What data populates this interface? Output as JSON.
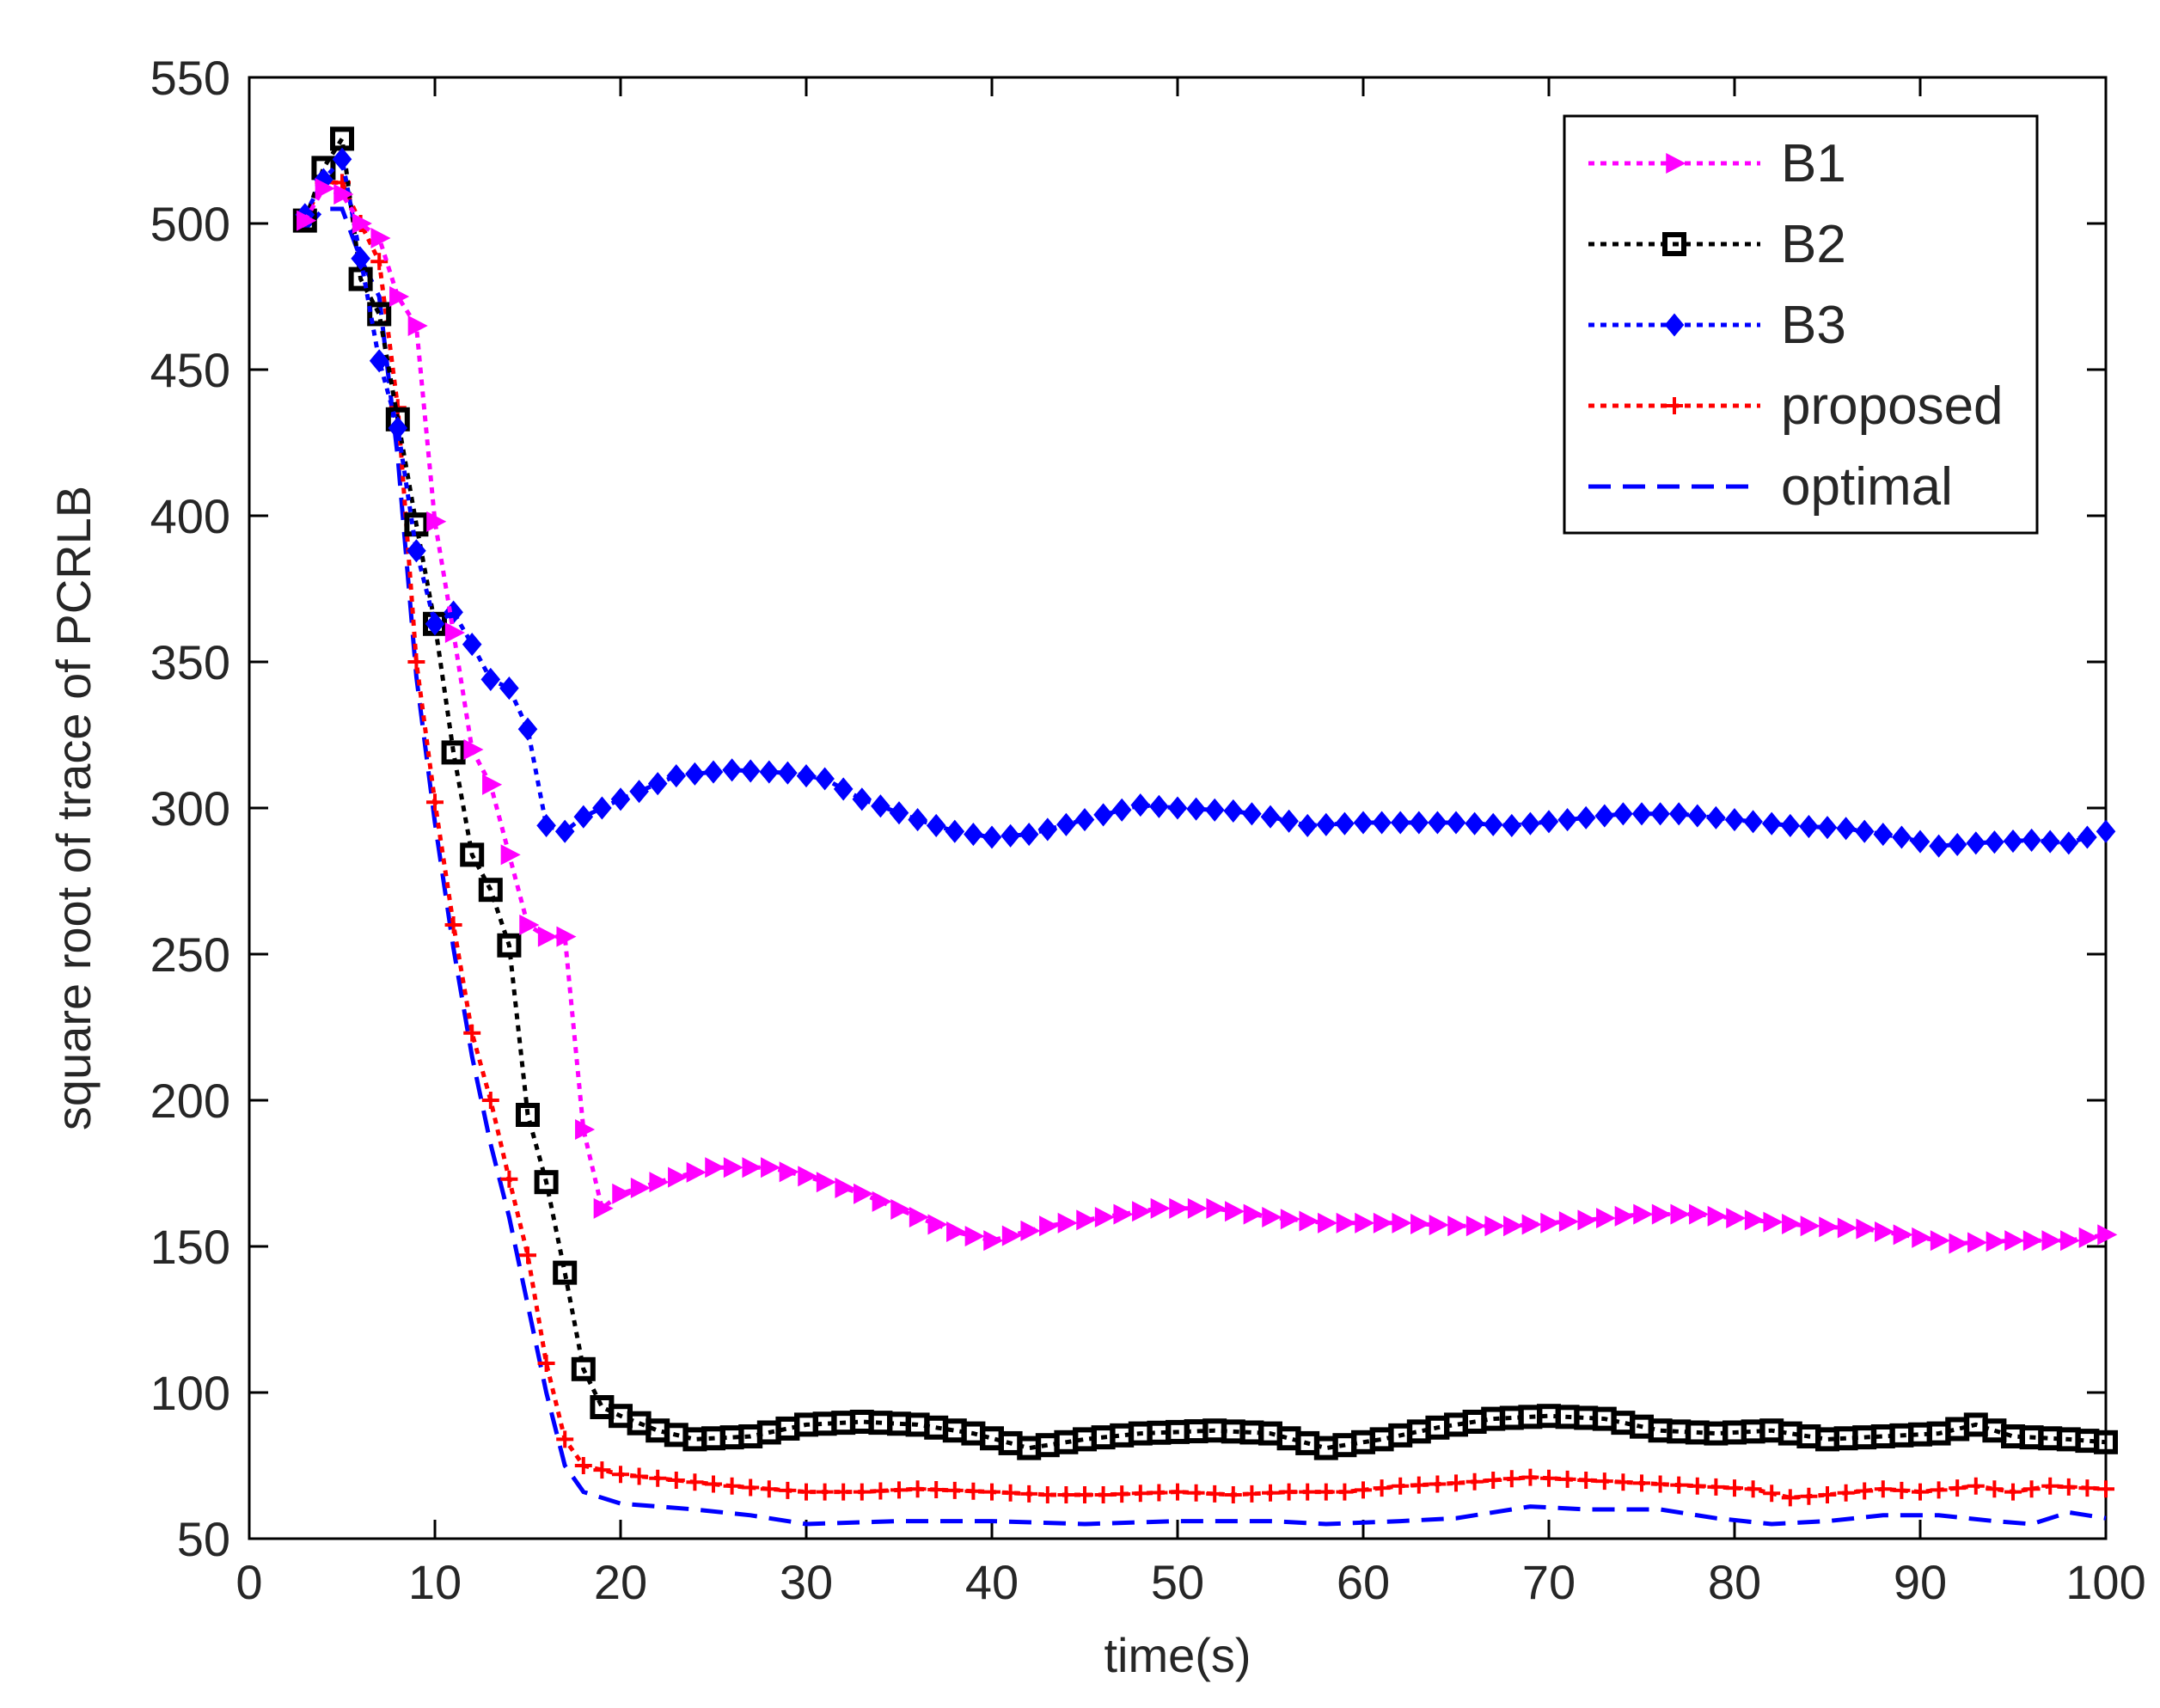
{
  "chart_data": {
    "type": "line",
    "title": "",
    "xlabel": "time(s)",
    "ylabel": "square root of trace of PCRLB",
    "xlim": [
      0,
      100
    ],
    "ylim": [
      50,
      550
    ],
    "xticks": [
      0,
      10,
      20,
      30,
      40,
      50,
      60,
      70,
      80,
      90,
      100
    ],
    "yticks": [
      50,
      100,
      150,
      200,
      250,
      300,
      350,
      400,
      450,
      500,
      550
    ],
    "xtick_labels": [
      "0",
      "10",
      "20",
      "30",
      "40",
      "50",
      "60",
      "70",
      "80",
      "90",
      "100"
    ],
    "ytick_labels": [
      "50",
      "100",
      "150",
      "200",
      "250",
      "300",
      "350",
      "400",
      "450",
      "500",
      "550"
    ],
    "legend_position": "top-right",
    "series": [
      {
        "name": "B1",
        "color": "#ff00ff",
        "linestyle": "dotted",
        "marker": "triangle-right",
        "points": [
          [
            3,
            501
          ],
          [
            4,
            512
          ],
          [
            5,
            510
          ],
          [
            6,
            500
          ],
          [
            7,
            495
          ],
          [
            8,
            475
          ],
          [
            9,
            465
          ],
          [
            10,
            398
          ],
          [
            11,
            360
          ],
          [
            12,
            320
          ],
          [
            13,
            308
          ],
          [
            14,
            284
          ],
          [
            15,
            260
          ],
          [
            16,
            256
          ],
          [
            17,
            256
          ],
          [
            18,
            190
          ],
          [
            19,
            163
          ],
          [
            20,
            168
          ],
          [
            22,
            172
          ],
          [
            25,
            177
          ],
          [
            28,
            177
          ],
          [
            30,
            174
          ],
          [
            33,
            168
          ],
          [
            36,
            160
          ],
          [
            38,
            155
          ],
          [
            40,
            152
          ],
          [
            43,
            157
          ],
          [
            46,
            160
          ],
          [
            49,
            163
          ],
          [
            52,
            163
          ],
          [
            55,
            160
          ],
          [
            58,
            158
          ],
          [
            62,
            158
          ],
          [
            65,
            157
          ],
          [
            68,
            157
          ],
          [
            72,
            159
          ],
          [
            75,
            161
          ],
          [
            78,
            161
          ],
          [
            81,
            159
          ],
          [
            84,
            157
          ],
          [
            87,
            156
          ],
          [
            90,
            153
          ],
          [
            92,
            151
          ],
          [
            95,
            152
          ],
          [
            98,
            152
          ],
          [
            100,
            154
          ]
        ]
      },
      {
        "name": "B2",
        "color": "#000000",
        "linestyle": "dotted",
        "marker": "square",
        "points": [
          [
            3,
            501
          ],
          [
            4,
            519
          ],
          [
            5,
            529
          ],
          [
            6,
            481
          ],
          [
            7,
            469
          ],
          [
            8,
            433
          ],
          [
            9,
            397
          ],
          [
            10,
            363
          ],
          [
            11,
            319
          ],
          [
            12,
            284
          ],
          [
            13,
            272
          ],
          [
            14,
            253
          ],
          [
            15,
            195
          ],
          [
            16,
            172
          ],
          [
            17,
            141
          ],
          [
            18,
            108
          ],
          [
            19,
            95
          ],
          [
            20,
            92
          ],
          [
            22,
            87
          ],
          [
            24,
            84
          ],
          [
            27,
            85
          ],
          [
            30,
            89
          ],
          [
            33,
            90
          ],
          [
            36,
            89
          ],
          [
            39,
            86
          ],
          [
            42,
            81
          ],
          [
            45,
            84
          ],
          [
            48,
            86
          ],
          [
            52,
            87
          ],
          [
            55,
            86
          ],
          [
            58,
            81
          ],
          [
            61,
            84
          ],
          [
            64,
            88
          ],
          [
            67,
            91
          ],
          [
            70,
            92
          ],
          [
            73,
            91
          ],
          [
            76,
            87
          ],
          [
            79,
            86
          ],
          [
            82,
            87
          ],
          [
            85,
            84
          ],
          [
            88,
            85
          ],
          [
            91,
            86
          ],
          [
            93,
            89
          ],
          [
            95,
            85
          ],
          [
            98,
            84
          ],
          [
            100,
            83
          ]
        ]
      },
      {
        "name": "B3",
        "color": "#0000ff",
        "linestyle": "dotted",
        "marker": "diamond",
        "points": [
          [
            3,
            503
          ],
          [
            4,
            515
          ],
          [
            5,
            522
          ],
          [
            6,
            488
          ],
          [
            7,
            453
          ],
          [
            8,
            430
          ],
          [
            9,
            388
          ],
          [
            10,
            363
          ],
          [
            11,
            367
          ],
          [
            12,
            356
          ],
          [
            13,
            344
          ],
          [
            14,
            341
          ],
          [
            15,
            327
          ],
          [
            16,
            294
          ],
          [
            17,
            292
          ],
          [
            18,
            297
          ],
          [
            20,
            303
          ],
          [
            23,
            311
          ],
          [
            26,
            313
          ],
          [
            29,
            312
          ],
          [
            31,
            310
          ],
          [
            33,
            303
          ],
          [
            36,
            296
          ],
          [
            38,
            292
          ],
          [
            40,
            290
          ],
          [
            42,
            291
          ],
          [
            45,
            296
          ],
          [
            48,
            301
          ],
          [
            50,
            300
          ],
          [
            53,
            299
          ],
          [
            55,
            297
          ],
          [
            57,
            294
          ],
          [
            60,
            295
          ],
          [
            65,
            295
          ],
          [
            68,
            294
          ],
          [
            71,
            296
          ],
          [
            74,
            298
          ],
          [
            77,
            298
          ],
          [
            80,
            296
          ],
          [
            83,
            294
          ],
          [
            86,
            293
          ],
          [
            89,
            290
          ],
          [
            91,
            287
          ],
          [
            93,
            288
          ],
          [
            96,
            289
          ],
          [
            98,
            288
          ],
          [
            100,
            292
          ]
        ]
      },
      {
        "name": "proposed",
        "color": "#ff0000",
        "linestyle": "dotted",
        "marker": "plus",
        "points": [
          [
            3,
            502
          ],
          [
            4,
            514
          ],
          [
            5,
            514
          ],
          [
            6,
            500
          ],
          [
            7,
            487
          ],
          [
            8,
            437
          ],
          [
            9,
            350
          ],
          [
            10,
            302
          ],
          [
            11,
            260
          ],
          [
            12,
            223
          ],
          [
            13,
            200
          ],
          [
            14,
            173
          ],
          [
            15,
            147
          ],
          [
            16,
            110
          ],
          [
            17,
            84
          ],
          [
            18,
            75
          ],
          [
            20,
            72
          ],
          [
            23,
            70
          ],
          [
            26,
            68
          ],
          [
            30,
            66
          ],
          [
            33,
            66
          ],
          [
            36,
            67
          ],
          [
            40,
            66
          ],
          [
            43,
            65
          ],
          [
            46,
            65
          ],
          [
            50,
            66
          ],
          [
            53,
            65
          ],
          [
            56,
            66
          ],
          [
            59,
            66
          ],
          [
            62,
            68
          ],
          [
            65,
            69
          ],
          [
            69,
            71
          ],
          [
            72,
            70
          ],
          [
            75,
            69
          ],
          [
            78,
            68
          ],
          [
            81,
            67
          ],
          [
            83,
            64
          ],
          [
            85,
            65
          ],
          [
            88,
            67
          ],
          [
            90,
            66
          ],
          [
            93,
            68
          ],
          [
            95,
            66
          ],
          [
            97,
            68
          ],
          [
            100,
            67
          ]
        ]
      },
      {
        "name": "optimal",
        "color": "#0000ff",
        "linestyle": "dashed",
        "marker": "none",
        "points": [
          [
            3,
            498
          ],
          [
            4,
            505
          ],
          [
            5,
            505
          ],
          [
            6,
            488
          ],
          [
            7,
            475
          ],
          [
            8,
            420
          ],
          [
            9,
            345
          ],
          [
            10,
            295
          ],
          [
            11,
            252
          ],
          [
            12,
            215
          ],
          [
            13,
            185
          ],
          [
            14,
            160
          ],
          [
            15,
            130
          ],
          [
            16,
            100
          ],
          [
            17,
            75
          ],
          [
            18,
            66
          ],
          [
            20,
            62
          ],
          [
            24,
            60
          ],
          [
            27,
            58
          ],
          [
            30,
            55
          ],
          [
            35,
            56
          ],
          [
            40,
            56
          ],
          [
            45,
            55
          ],
          [
            50,
            56
          ],
          [
            55,
            56
          ],
          [
            58,
            55
          ],
          [
            62,
            56
          ],
          [
            65,
            57
          ],
          [
            69,
            61
          ],
          [
            72,
            60
          ],
          [
            76,
            60
          ],
          [
            79,
            57
          ],
          [
            82,
            55
          ],
          [
            85,
            56
          ],
          [
            88,
            58
          ],
          [
            91,
            58
          ],
          [
            94,
            56
          ],
          [
            96,
            55
          ],
          [
            98,
            59
          ],
          [
            100,
            57
          ]
        ]
      }
    ]
  }
}
